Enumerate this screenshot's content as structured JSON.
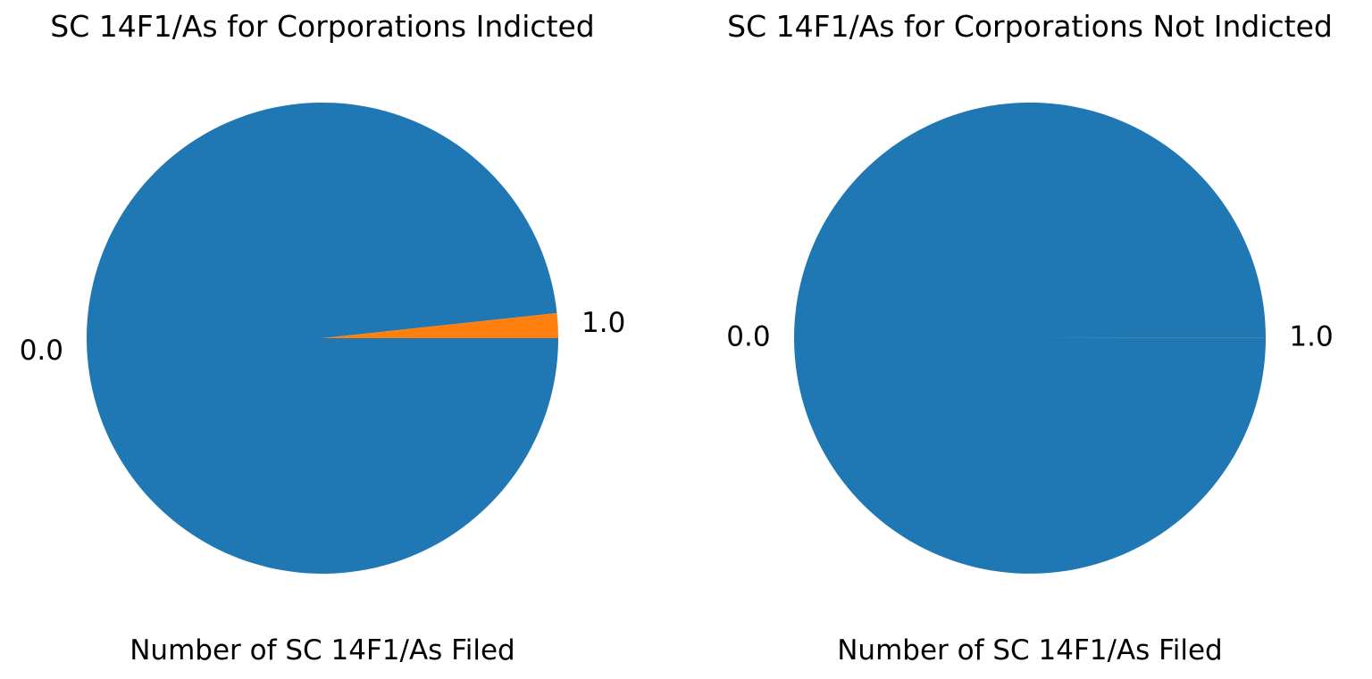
{
  "chart_data": [
    {
      "type": "pie",
      "title": "SC 14F1/As for Corporations Indicted",
      "xlabel": "Number of SC 14F1/As Filed",
      "ylabel": "",
      "categories": [
        "0.0",
        "1.0"
      ],
      "values": [
        98.3,
        1.7
      ],
      "colors": [
        "#1f77b4",
        "#ff7f0e"
      ],
      "start_angle": 0,
      "direction": "clockwise",
      "legend": "none"
    },
    {
      "type": "pie",
      "title": "SC 14F1/As for Corporations Not Indicted",
      "xlabel": "Number of SC 14F1/As Filed",
      "ylabel": "",
      "categories": [
        "0.0",
        "1.0"
      ],
      "values": [
        99.99,
        0.01
      ],
      "colors": [
        "#1f77b4",
        "#ff7f0e"
      ],
      "start_angle": 0,
      "direction": "clockwise",
      "legend": "none"
    }
  ]
}
